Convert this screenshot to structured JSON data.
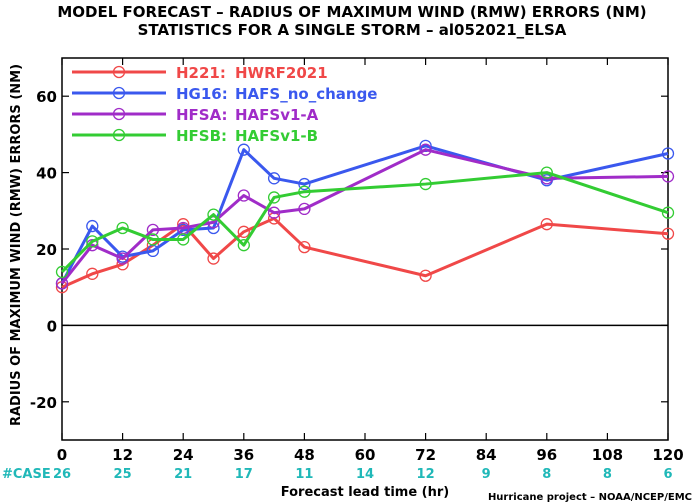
{
  "chart_data": {
    "type": "line",
    "title": "MODEL FORECAST – RADIUS OF MAXIMUM WIND (RMW) ERRORS (NM)",
    "subtitle": "STATISTICS FOR A SINGLE STORM – al052021_ELSA",
    "xlabel": "Forecast lead time (hr)",
    "ylabel": "RADIUS OF MAXIMUM WIND (RMW) ERRORS (NM)",
    "xlim": [
      0,
      120
    ],
    "ylim": [
      -30,
      70
    ],
    "xticks": [
      0,
      12,
      24,
      36,
      48,
      60,
      72,
      84,
      96,
      108,
      120
    ],
    "yticks": [
      -20,
      0,
      20,
      40,
      60
    ],
    "grid": false,
    "legend_position": "top-left",
    "case_label": "#CASE",
    "cases": [
      {
        "x": 0,
        "label": "26"
      },
      {
        "x": 12,
        "label": "25"
      },
      {
        "x": 24,
        "label": "21"
      },
      {
        "x": 36,
        "label": "17"
      },
      {
        "x": 48,
        "label": "11"
      },
      {
        "x": 60,
        "label": "14"
      },
      {
        "x": 72,
        "label": "12"
      },
      {
        "x": 84,
        "label": "9"
      },
      {
        "x": 96,
        "label": "8"
      },
      {
        "x": 108,
        "label": "8"
      },
      {
        "x": 120,
        "label": "6"
      }
    ],
    "series": [
      {
        "code": "H221:",
        "name": "HWRF2021",
        "color": "#f04848",
        "points": [
          [
            0,
            10
          ],
          [
            6,
            13.5
          ],
          [
            12,
            16
          ],
          [
            18,
            21
          ],
          [
            24,
            26.5
          ],
          [
            30,
            17.5
          ],
          [
            36,
            24.5
          ],
          [
            42,
            28
          ],
          [
            48,
            20.5
          ],
          [
            72,
            13
          ],
          [
            96,
            26.5
          ],
          [
            120,
            24
          ]
        ]
      },
      {
        "code": "HG16:",
        "name": "HAFS_no_change",
        "color": "#3a58ee",
        "points": [
          [
            0,
            11
          ],
          [
            6,
            26
          ],
          [
            12,
            18
          ],
          [
            18,
            19.5
          ],
          [
            24,
            25
          ],
          [
            30,
            25.5
          ],
          [
            36,
            46
          ],
          [
            42,
            38.5
          ],
          [
            48,
            37
          ],
          [
            72,
            47
          ],
          [
            96,
            38
          ],
          [
            120,
            45
          ]
        ]
      },
      {
        "code": "HFSA:",
        "name": "HAFSv1-A",
        "color": "#a02cc8",
        "points": [
          [
            0,
            11
          ],
          [
            6,
            21
          ],
          [
            12,
            17.5
          ],
          [
            18,
            25
          ],
          [
            24,
            25.5
          ],
          [
            30,
            27
          ],
          [
            36,
            34
          ],
          [
            42,
            29.5
          ],
          [
            48,
            30.5
          ],
          [
            72,
            46
          ],
          [
            96,
            38.5
          ],
          [
            120,
            39
          ]
        ]
      },
      {
        "code": "HFSB:",
        "name": "HAFSv1-B",
        "color": "#33cc33",
        "points": [
          [
            0,
            14
          ],
          [
            6,
            22
          ],
          [
            12,
            25.5
          ],
          [
            18,
            22.5
          ],
          [
            24,
            22.5
          ],
          [
            30,
            29
          ],
          [
            36,
            21
          ],
          [
            42,
            33.5
          ],
          [
            48,
            35
          ],
          [
            72,
            37
          ],
          [
            96,
            40
          ],
          [
            120,
            29.5
          ]
        ]
      }
    ],
    "case_color": "#20b8b8",
    "credit": "Hurricane project – NOAA/NCEP/EMC"
  }
}
